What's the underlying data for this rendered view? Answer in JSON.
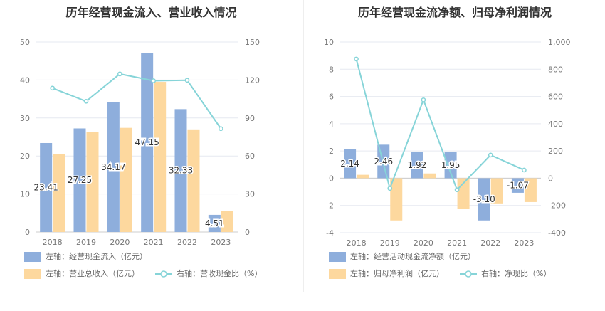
{
  "charts": [
    {
      "title": "历年经营现金流入、营业收入情况",
      "chart_data": {
        "type": "bar",
        "categories": [
          "2018",
          "2019",
          "2020",
          "2021",
          "2022",
          "2023"
        ],
        "series": [
          {
            "name": "左轴：经营现金流入（亿元）",
            "kind": "bar",
            "axis": "left",
            "color": "#8eaedc",
            "values": [
              23.41,
              27.25,
              34.17,
              47.15,
              32.33,
              4.51
            ],
            "show_labels": true
          },
          {
            "name": "左轴：营业总收入（亿元）",
            "kind": "bar",
            "axis": "left",
            "color": "#fdd89e",
            "values": [
              20.6,
              26.4,
              27.4,
              39.5,
              27.0,
              5.6
            ],
            "show_labels": false
          },
          {
            "name": "右轴：营收现金比（%）",
            "kind": "line",
            "axis": "right",
            "color": "#86d4d8",
            "values": [
              113.6,
              103.2,
              124.8,
              119.4,
              119.8,
              81.6
            ]
          }
        ],
        "left_axis": {
          "min": 0,
          "max": 50,
          "ticks": [
            0,
            10,
            20,
            30,
            40,
            50
          ],
          "tick_labels": [
            "0",
            "10",
            "20",
            "30",
            "40",
            "50"
          ]
        },
        "right_axis": {
          "min": 0,
          "max": 150,
          "ticks": [
            0,
            30,
            60,
            90,
            120,
            150
          ],
          "tick_labels": [
            "0",
            "30",
            "60",
            "90",
            "120",
            "150"
          ]
        },
        "grid": true,
        "legend_position": "bottom-left"
      }
    },
    {
      "title": "历年经营现金流净额、归母净利润情况",
      "chart_data": {
        "type": "bar",
        "categories": [
          "2018",
          "2019",
          "2020",
          "2021",
          "2022",
          "2023"
        ],
        "series": [
          {
            "name": "左轴：经营活动现金流净额（亿元）",
            "kind": "bar",
            "axis": "left",
            "color": "#8eaedc",
            "values": [
              2.14,
              2.46,
              1.92,
              1.95,
              -3.1,
              -1.07
            ],
            "show_labels": true
          },
          {
            "name": "左轴：归母净利润（亿元）",
            "kind": "bar",
            "axis": "left",
            "color": "#fdd89e",
            "values": [
              0.25,
              -3.1,
              0.35,
              -2.25,
              -1.85,
              -1.75
            ],
            "show_labels": false
          },
          {
            "name": "右轴：净现比（%）",
            "kind": "line",
            "axis": "right",
            "color": "#86d4d8",
            "values": [
              875,
              -75,
              575,
              -85,
              170,
              60
            ]
          }
        ],
        "left_axis": {
          "min": -4,
          "max": 10,
          "ticks": [
            -4,
            -2,
            0,
            2,
            4,
            6,
            8,
            10
          ],
          "tick_labels": [
            "-4",
            "-2",
            "0",
            "2",
            "4",
            "6",
            "8",
            "10"
          ]
        },
        "right_axis": {
          "min": -400,
          "max": 1000,
          "ticks": [
            -400,
            -200,
            0,
            200,
            400,
            600,
            800,
            1000
          ],
          "tick_labels": [
            "-400",
            "-200",
            "0",
            "200",
            "400",
            "600",
            "800",
            "1,000"
          ]
        },
        "grid": true,
        "legend_position": "bottom-left"
      }
    }
  ]
}
